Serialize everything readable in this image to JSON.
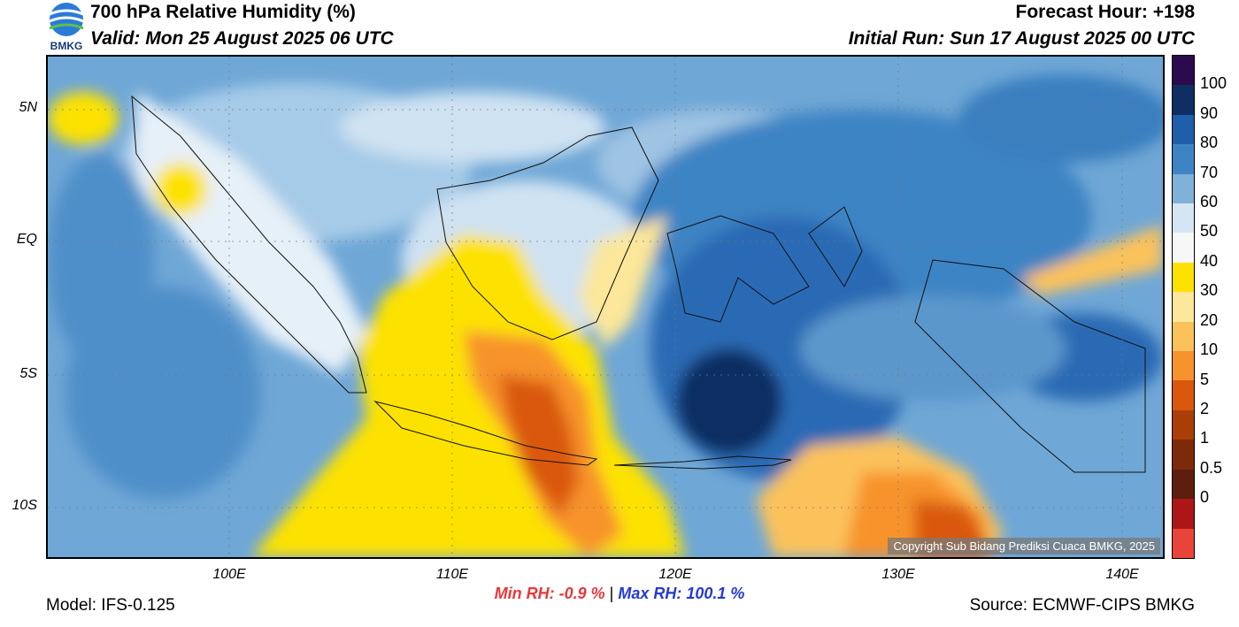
{
  "header": {
    "title": "700 hPa Relative Humidity (%)",
    "valid": "Valid: Mon 25 August 2025 06 UTC",
    "forecast_hour": "Forecast Hour: +198",
    "initial_run": "Initial Run: Sun 17 August 2025 00 UTC",
    "logo_text": "BMKG"
  },
  "map": {
    "lat_ticks": [
      "5N",
      "EQ",
      "5S",
      "10S"
    ],
    "lon_ticks": [
      "100E",
      "110E",
      "120E",
      "130E",
      "140E"
    ],
    "copyright": "Copyright Sub Bidang Prediksi Cuaca BMKG, 2025"
  },
  "colorbar": {
    "labels": [
      "100",
      "90",
      "80",
      "70",
      "60",
      "50",
      "40",
      "30",
      "20",
      "10",
      "5",
      "2",
      "1",
      "0.5",
      "0"
    ],
    "colors": [
      "#2d0a4e",
      "#0f2f63",
      "#1f5ea8",
      "#3d84c4",
      "#7fb1d9",
      "#d4e6f3",
      "#f7f7f7",
      "#fde200",
      "#fce79a",
      "#fbc25b",
      "#f7932c",
      "#d9580c",
      "#a93f06",
      "#7d2a0a",
      "#5c1f0e",
      "#ad1616",
      "#e8443a"
    ]
  },
  "stats": {
    "min_rh": "Min RH:  -0.9 %",
    "separator": "|",
    "max_rh": "Max RH: 100.1 %"
  },
  "footer": {
    "model": "Model: IFS-0.125",
    "source": "Source: ECMWF-CIPS BMKG"
  }
}
